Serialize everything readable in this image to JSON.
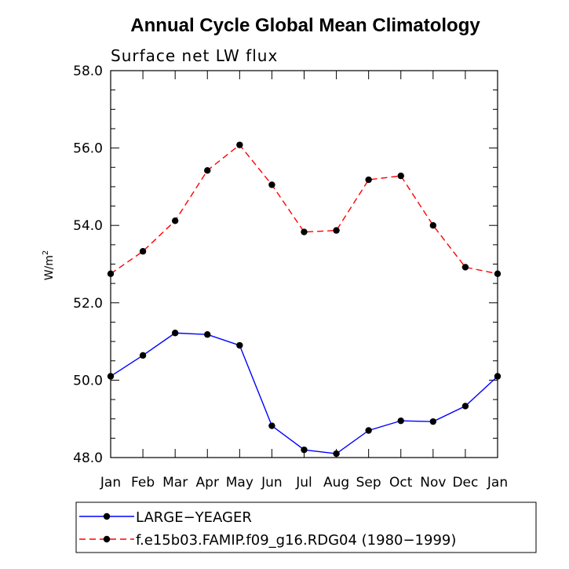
{
  "chart_data": {
    "type": "line",
    "title": "Annual Cycle Global Mean Climatology",
    "subtitle": "Surface net LW flux",
    "ylabel": "W/m",
    "ylabel_sup": "2",
    "xlabel": "",
    "categories": [
      "Jan",
      "Feb",
      "Mar",
      "Apr",
      "May",
      "Jun",
      "Jul",
      "Aug",
      "Sep",
      "Oct",
      "Nov",
      "Dec",
      "Jan"
    ],
    "ylim": [
      48.0,
      58.0
    ],
    "yticks": [
      "48.0",
      "50.0",
      "52.0",
      "54.0",
      "56.0",
      "58.0"
    ],
    "series": [
      {
        "name": "LARGE−YEAGER",
        "color": "#0000ff",
        "dash": "solid",
        "values": [
          50.1,
          50.64,
          51.22,
          51.18,
          50.9,
          48.82,
          48.2,
          48.1,
          48.7,
          48.95,
          48.93,
          49.33,
          50.1
        ]
      },
      {
        "name": "f.e15b03.FAMIP.f09_g16.RDG04 (1980−1999)",
        "color": "#ff0000",
        "dash": "dashed",
        "values": [
          52.75,
          53.33,
          54.12,
          55.42,
          56.08,
          55.05,
          53.83,
          53.87,
          55.18,
          55.28,
          54.0,
          52.92,
          52.75
        ]
      }
    ],
    "legend_placement": "bottom",
    "grid": false
  }
}
